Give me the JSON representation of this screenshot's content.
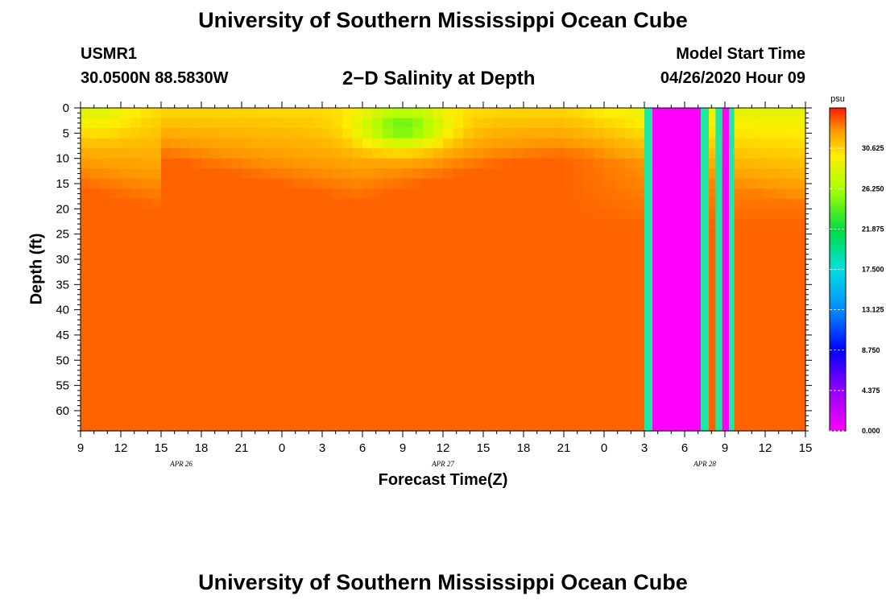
{
  "page": {
    "title_top": "University of Southern Mississippi Ocean Cube",
    "title_bottom": "University of Southern Mississippi Ocean Cube",
    "station": "USMR1",
    "coords": "30.0500N 88.5830W",
    "subtitle": "2−D Salinity at Depth",
    "start_label": "Model Start Time",
    "start_value": "04/26/2020 Hour 09"
  },
  "chart_data": {
    "type": "heatmap",
    "title": "2−D Salinity at Depth",
    "xlabel": "Forecast Time(Z)",
    "ylabel": "Depth (ft)",
    "x_ticks": [
      "9",
      "12",
      "15",
      "18",
      "21",
      "0",
      "3",
      "6",
      "9",
      "12",
      "15",
      "18",
      "21",
      "0",
      "3",
      "6",
      "9",
      "12",
      "15"
    ],
    "x_hours": [
      0,
      3,
      6,
      9,
      12,
      15,
      18,
      21,
      24,
      27,
      30,
      33,
      36,
      39,
      42,
      45,
      48,
      51,
      54
    ],
    "xlim_hours": [
      0,
      54
    ],
    "date_labels": [
      {
        "text": "APR 26",
        "hour": 7.5
      },
      {
        "text": "APR 27",
        "hour": 27
      },
      {
        "text": "APR 28",
        "hour": 46.5
      }
    ],
    "y_ticks": [
      0,
      5,
      10,
      15,
      20,
      25,
      30,
      35,
      40,
      45,
      50,
      55,
      60
    ],
    "ylim": [
      0,
      64
    ],
    "colorbar": {
      "unit": "psu",
      "min": 0.0,
      "max": 35.0,
      "tick_labels": [
        "30.625",
        "26.250",
        "21.875",
        "17.500",
        "13.125",
        "8.750",
        "4.375",
        "0.000"
      ],
      "tick_values": [
        30.625,
        26.25,
        21.875,
        17.5,
        13.125,
        8.75,
        4.375,
        0.0
      ]
    },
    "field_description": {
      "surface_salinity_psu": 29.5,
      "deep_salinity_psu": 33.5,
      "fresh_plume": {
        "hour_center": 24,
        "depth_center": 4,
        "min_psu": 24
      }
    },
    "missing_data_bands": [
      {
        "from_hour": 42.0,
        "to_hour": 42.6,
        "value": 17.5
      },
      {
        "from_hour": 42.6,
        "to_hour": 46.2,
        "value": 0.0
      },
      {
        "from_hour": 46.2,
        "to_hour": 46.8,
        "value": 17.5
      },
      {
        "from_hour": 47.3,
        "to_hour": 47.8,
        "value": 17.5
      },
      {
        "from_hour": 47.8,
        "to_hour": 48.3,
        "value": 0.0
      },
      {
        "from_hour": 48.3,
        "to_hour": 48.7,
        "value": 17.5
      }
    ]
  }
}
